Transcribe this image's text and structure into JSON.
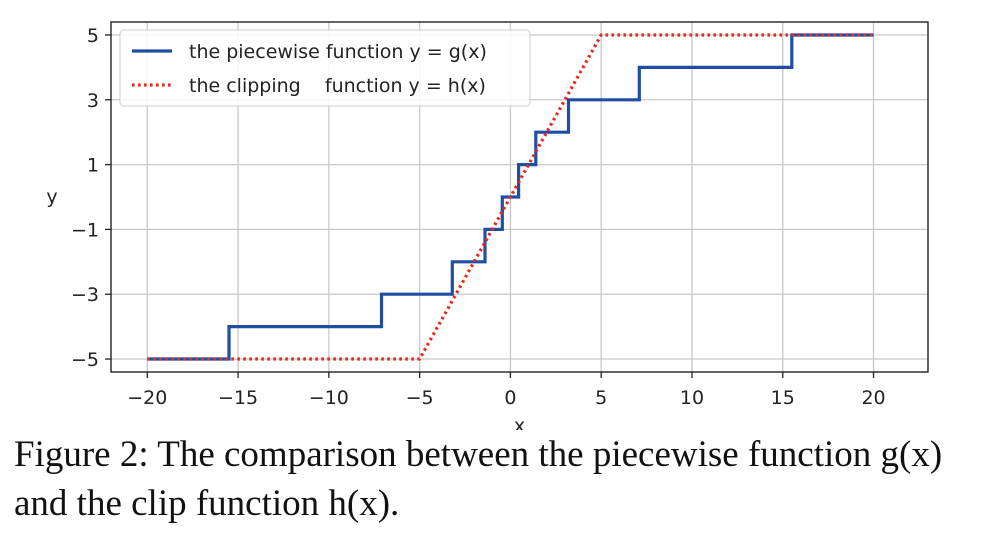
{
  "chart_data": {
    "type": "line",
    "xlabel": "x",
    "ylabel": "y",
    "xlim": [
      -22,
      23
    ],
    "ylim": [
      -5.4,
      5.4
    ],
    "xticks": [
      -20,
      -15,
      -10,
      -5,
      0,
      5,
      10,
      15,
      20
    ],
    "xtick_labels": [
      "−20",
      "−15",
      "−10",
      "−5",
      "0",
      "5",
      "10",
      "15",
      "20"
    ],
    "yticks": [
      -5,
      -3,
      -1,
      1,
      3,
      5
    ],
    "ytick_labels": [
      "−5",
      "−3",
      "−1",
      "1",
      "3",
      "5"
    ],
    "grid": true,
    "legend_position": "upper-left",
    "series": [
      {
        "name": "the piecewise function y = g(x)",
        "style": "solid",
        "color": "#1f4ea3",
        "x": [
          -20,
          -15.5,
          -15.5,
          -7.1,
          -7.1,
          -3.2,
          -3.2,
          -1.4,
          -1.4,
          -0.45,
          -0.45,
          0.45,
          0.45,
          1.4,
          1.4,
          3.2,
          3.2,
          7.1,
          7.1,
          15.5,
          15.5,
          20
        ],
        "y": [
          -5,
          -5,
          -4,
          -4,
          -3,
          -3,
          -2,
          -2,
          -1,
          -1,
          0,
          0,
          1,
          1,
          2,
          2,
          3,
          3,
          4,
          4,
          5,
          5
        ]
      },
      {
        "name": "the clipping function y = h(x)",
        "style": "dotted",
        "color": "#e8291d",
        "x": [
          -20,
          -5,
          5,
          20
        ],
        "y": [
          -5,
          -5,
          5,
          5
        ]
      }
    ],
    "legend": [
      {
        "text": "the piecewise function y = g(x)",
        "color": "#1f4ea3",
        "style": "solid"
      },
      {
        "text": "the clipping    function y = h(x)",
        "color": "#e8291d",
        "style": "dotted"
      }
    ]
  },
  "caption": "Figure 2: The comparison between the piecewise function g(x) and the clip function h(x).",
  "colors": {
    "grid": "#c8c8c8",
    "axes": "#222222",
    "g_line": "#1f4ea3",
    "h_line": "#e8291d"
  }
}
